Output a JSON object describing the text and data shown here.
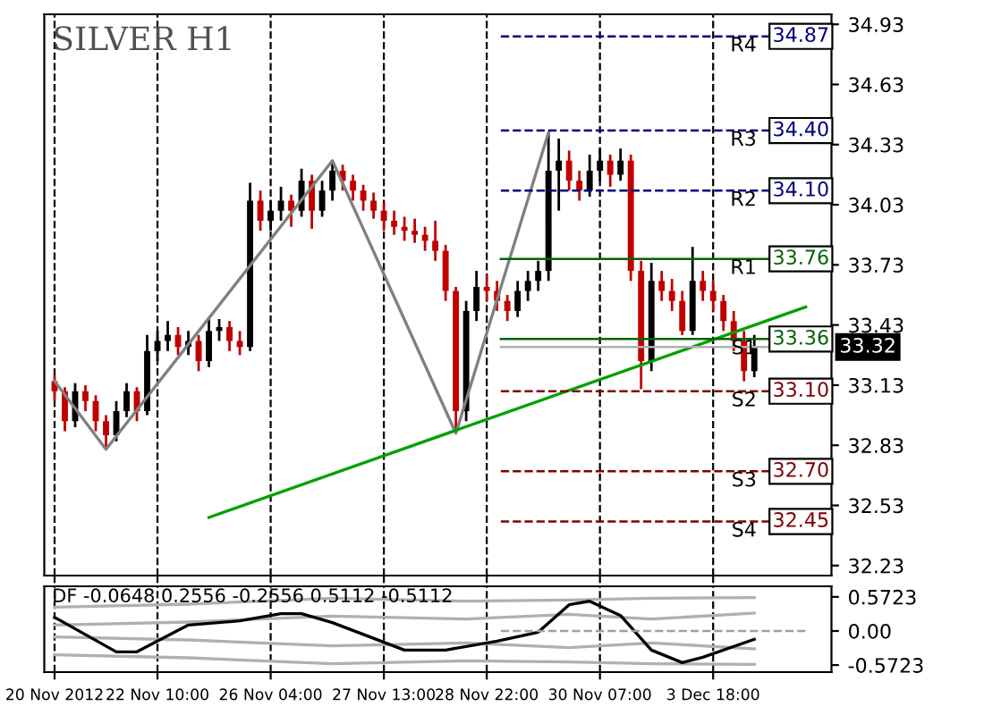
{
  "chart_data": [
    {
      "type": "candlestick",
      "title": "SILVER H1",
      "categories": [
        null,
        null,
        null,
        null,
        null,
        null,
        null,
        null,
        null,
        null,
        null,
        null,
        null,
        null,
        null,
        null,
        null,
        null,
        null,
        null,
        null,
        null,
        null,
        null,
        null,
        null,
        null,
        null,
        null,
        null,
        null,
        null,
        null,
        null,
        null,
        null,
        null,
        null,
        null,
        null,
        null,
        null,
        null,
        null,
        null,
        null,
        null,
        null,
        null,
        null,
        null,
        null,
        null,
        null,
        null,
        null,
        null,
        null,
        null,
        null,
        null,
        null,
        null,
        null,
        null,
        null,
        null,
        null,
        null,
        null,
        null,
        null,
        null,
        null,
        null,
        null
      ],
      "annotations": [
        {
          "text": "34.87",
          "y": 34.87
        },
        {
          "text": "34.40",
          "y": 34.4
        },
        {
          "text": "34.10",
          "y": 34.1
        },
        {
          "text": "33.76",
          "y": 33.76
        },
        {
          "text": "33.36",
          "y": 33.36
        },
        {
          "text": "33.10",
          "y": 33.1
        },
        {
          "text": "32.70",
          "y": 32.7
        },
        {
          "text": "32.45",
          "y": 32.45
        },
        {
          "text": "33.32",
          "y": 33.32
        }
      ],
      "ohlc": [
        [
          33.15,
          33.18,
          33.05,
          33.1
        ],
        [
          33.1,
          33.12,
          32.9,
          32.95
        ],
        [
          32.95,
          33.14,
          32.92,
          33.1
        ],
        [
          33.1,
          33.13,
          33.0,
          33.05
        ],
        [
          33.05,
          33.08,
          32.9,
          32.95
        ],
        [
          32.95,
          32.98,
          32.81,
          32.88
        ],
        [
          32.88,
          33.05,
          32.85,
          33.0
        ],
        [
          33.0,
          33.14,
          32.97,
          33.1
        ],
        [
          33.1,
          33.12,
          32.95,
          33.0
        ],
        [
          33.0,
          33.38,
          32.98,
          33.3
        ],
        [
          33.3,
          33.4,
          33.25,
          33.35
        ],
        [
          33.35,
          33.45,
          33.3,
          33.38
        ],
        [
          33.38,
          33.42,
          33.28,
          33.32
        ],
        [
          33.32,
          33.4,
          33.28,
          33.35
        ],
        [
          33.35,
          33.38,
          33.2,
          33.25
        ],
        [
          33.25,
          33.47,
          33.22,
          33.4
        ],
        [
          33.4,
          33.46,
          33.35,
          33.42
        ],
        [
          33.42,
          33.45,
          33.3,
          33.35
        ],
        [
          33.35,
          33.4,
          33.28,
          33.32
        ],
        [
          33.32,
          34.14,
          33.3,
          34.05
        ],
        [
          34.05,
          34.1,
          33.9,
          33.95
        ],
        [
          33.95,
          34.05,
          33.9,
          34.0
        ],
        [
          34.0,
          34.12,
          33.95,
          34.05
        ],
        [
          34.05,
          34.08,
          33.92,
          34.0
        ],
        [
          34.0,
          34.21,
          33.97,
          34.15
        ],
        [
          34.15,
          34.18,
          33.91,
          34.0
        ],
        [
          34.0,
          34.15,
          33.97,
          34.1
        ],
        [
          34.1,
          34.25,
          34.05,
          34.2
        ],
        [
          34.2,
          34.23,
          34.1,
          34.15
        ],
        [
          34.15,
          34.18,
          34.05,
          34.1
        ],
        [
          34.1,
          34.13,
          34.0,
          34.05
        ],
        [
          34.05,
          34.09,
          33.96,
          34.0
        ],
        [
          34.0,
          34.04,
          33.9,
          33.95
        ],
        [
          33.95,
          34.0,
          33.88,
          33.92
        ],
        [
          33.92,
          33.97,
          33.85,
          33.9
        ],
        [
          33.9,
          33.96,
          33.84,
          33.88
        ],
        [
          33.88,
          33.92,
          33.8,
          33.85
        ],
        [
          33.85,
          33.95,
          33.75,
          33.8
        ],
        [
          33.8,
          33.83,
          33.55,
          33.6
        ],
        [
          33.6,
          33.62,
          32.89,
          33.0
        ],
        [
          33.0,
          33.55,
          32.95,
          33.5
        ],
        [
          33.5,
          33.7,
          33.45,
          33.62
        ],
        [
          33.62,
          33.68,
          33.55,
          33.6
        ],
        [
          33.6,
          33.65,
          33.5,
          33.55
        ],
        [
          33.55,
          33.58,
          33.45,
          33.5
        ],
        [
          33.5,
          33.65,
          33.47,
          33.6
        ],
        [
          33.6,
          33.7,
          33.55,
          33.65
        ],
        [
          33.65,
          33.75,
          33.6,
          33.7
        ],
        [
          33.7,
          34.39,
          33.65,
          34.2
        ],
        [
          34.2,
          34.36,
          34.0,
          34.25
        ],
        [
          34.25,
          34.3,
          34.1,
          34.15
        ],
        [
          34.15,
          34.2,
          34.05,
          34.1
        ],
        [
          34.1,
          34.28,
          34.07,
          34.2
        ],
        [
          34.2,
          34.31,
          34.15,
          34.25
        ],
        [
          34.25,
          34.28,
          34.12,
          34.18
        ],
        [
          34.18,
          34.31,
          34.15,
          34.25
        ],
        [
          34.25,
          34.28,
          33.65,
          33.7
        ],
        [
          33.7,
          33.75,
          33.11,
          33.25
        ],
        [
          33.25,
          33.74,
          33.2,
          33.65
        ],
        [
          33.65,
          33.7,
          33.55,
          33.6
        ],
        [
          33.6,
          33.66,
          33.5,
          33.55
        ],
        [
          33.55,
          33.6,
          33.38,
          33.4
        ],
        [
          33.4,
          33.82,
          33.38,
          33.65
        ],
        [
          33.65,
          33.7,
          33.55,
          33.6
        ],
        [
          33.6,
          33.65,
          33.5,
          33.55
        ],
        [
          33.55,
          33.58,
          33.4,
          33.45
        ],
        [
          33.45,
          33.5,
          33.3,
          33.35
        ],
        [
          33.35,
          33.4,
          33.15,
          33.2
        ],
        [
          33.2,
          33.38,
          33.17,
          33.32
        ],
        null,
        null,
        null,
        null,
        null,
        null,
        null
      ],
      "colors": [
        "#c00000",
        "#c00000",
        "#000000",
        "#c00000",
        "#c00000",
        "#c00000",
        "#000000",
        "#000000",
        "#c00000",
        "#000000",
        "#000000",
        "#000000",
        "#c00000",
        "#000000",
        "#c00000",
        "#000000",
        "#000000",
        "#c00000",
        "#c00000",
        "#000000",
        "#c00000",
        "#000000",
        "#000000",
        "#c00000",
        "#000000",
        "#c00000",
        "#000000",
        "#000000",
        "#c00000",
        "#c00000",
        "#c00000",
        "#c00000",
        "#c00000",
        "#c00000",
        "#c00000",
        "#c00000",
        "#c00000",
        "#c00000",
        "#c00000",
        "#c00000",
        "#000000",
        "#000000",
        "#c00000",
        "#c00000",
        "#c00000",
        "#000000",
        "#000000",
        "#000000",
        "#000000",
        "#000000",
        "#c00000",
        "#c00000",
        "#000000",
        "#000000",
        "#c00000",
        "#000000",
        "#c00000",
        "#c00000",
        "#000000",
        "#c00000",
        "#c00000",
        "#c00000",
        "#000000",
        "#c00000",
        "#c00000",
        "#c00000",
        "#c00000",
        "#c00000",
        "#000000",
        null,
        null,
        null,
        null,
        null,
        null,
        null
      ],
      "series": [
        {
          "type": "line",
          "color": "#808080",
          "values": [
            33.15,
            null,
            null,
            null,
            null,
            32.81,
            null,
            null,
            null,
            null,
            null,
            null,
            null,
            null,
            null,
            null,
            null,
            null,
            null,
            null,
            null,
            null,
            null,
            null,
            null,
            null,
            null,
            34.25,
            null,
            null,
            null,
            null,
            null,
            null,
            null,
            null,
            null,
            null,
            null,
            32.89,
            null,
            null,
            null,
            null,
            null,
            null,
            null,
            null,
            34.39,
            null,
            null,
            null,
            null,
            null,
            null,
            null,
            null,
            null,
            null,
            null,
            null,
            null,
            null,
            null,
            null,
            null,
            null,
            null,
            null,
            null,
            null,
            null,
            null,
            null,
            null,
            null
          ]
        },
        {
          "type": "line",
          "color": "#00a000",
          "values": [
            null,
            null,
            null,
            null,
            null,
            null,
            null,
            null,
            null,
            null,
            null,
            null,
            null,
            null,
            null,
            32.47,
            null,
            null,
            null,
            null,
            null,
            null,
            null,
            null,
            null,
            null,
            null,
            null,
            null,
            null,
            null,
            null,
            null,
            null,
            null,
            null,
            null,
            null,
            null,
            null,
            null,
            null,
            null,
            null,
            null,
            null,
            null,
            null,
            null,
            null,
            null,
            null,
            null,
            null,
            null,
            null,
            null,
            null,
            null,
            null,
            null,
            null,
            null,
            null,
            null,
            null,
            null,
            null,
            null,
            null,
            null,
            null,
            null,
            33.52,
            null,
            null
          ]
        }
      ],
      "ylim": [
        32.18,
        34.98
      ],
      "yticks": [
        34.93,
        34.63,
        34.33,
        34.03,
        33.73,
        33.43,
        33.13,
        32.83,
        32.53,
        32.23
      ],
      "ref_lines": [
        {
          "axis": "y",
          "value": 34.87,
          "label": "R4",
          "color": "#000080",
          "line_style": "dashed"
        },
        {
          "axis": "y",
          "value": 34.4,
          "label": "R3",
          "color": "#000080",
          "line_style": "dashed"
        },
        {
          "axis": "y",
          "value": 34.1,
          "label": "R2",
          "color": "#000080",
          "line_style": "dashed"
        },
        {
          "axis": "y",
          "value": 33.76,
          "label": "R1",
          "color": "#006400",
          "line_style": "solid"
        },
        {
          "axis": "y",
          "value": 33.36,
          "label": "S1",
          "color": "#006400",
          "line_style": "solid"
        },
        {
          "axis": "y",
          "value": 33.1,
          "label": "S2",
          "color": "#800000",
          "line_style": "dashed"
        },
        {
          "axis": "y",
          "value": 32.7,
          "label": "S3",
          "color": "#800000",
          "line_style": "dashed"
        },
        {
          "axis": "y",
          "value": 32.45,
          "label": "S4",
          "color": "#800000",
          "line_style": "dashed"
        },
        {
          "axis": "y",
          "value": 33.32,
          "label": null,
          "color": "#b0b0b0",
          "line_style": "solid"
        }
      ],
      "grid": "x",
      "legend": false,
      "tick_labels": "y"
    },
    {
      "type": "line",
      "title": "DF -0.0648 0.2556 -0.2556 0.5112 -0.5112",
      "categories": [
        "20 Nov 2012",
        null,
        null,
        null,
        null,
        null,
        null,
        null,
        null,
        null,
        "22 Nov 10:00",
        null,
        null,
        null,
        null,
        null,
        null,
        null,
        null,
        null,
        null,
        "26 Nov 04:00",
        null,
        null,
        null,
        null,
        null,
        null,
        null,
        null,
        null,
        null,
        "27 Nov 13:00",
        null,
        null,
        null,
        null,
        null,
        null,
        null,
        null,
        null,
        "28 Nov 22:00",
        null,
        null,
        null,
        null,
        null,
        null,
        null,
        null,
        null,
        null,
        "30 Nov 07:00",
        null,
        null,
        null,
        null,
        null,
        null,
        null,
        null,
        null,
        null,
        "3 Dec 18:00",
        null,
        null,
        null,
        null,
        null,
        null,
        null,
        null,
        null,
        null,
        null
      ],
      "series": [
        {
          "color": "#b0b0b0",
          "values": [
            0.4,
            null,
            null,
            null,
            null,
            null,
            null,
            null,
            null,
            null,
            null,
            null,
            null,
            0.45,
            null,
            null,
            null,
            null,
            null,
            null,
            null,
            null,
            null,
            null,
            null,
            null,
            null,
            0.55,
            null,
            null,
            null,
            null,
            null,
            null,
            null,
            null,
            null,
            null,
            null,
            null,
            0.5,
            null,
            null,
            null,
            null,
            null,
            null,
            null,
            null,
            null,
            0.52,
            null,
            null,
            null,
            null,
            null,
            null,
            null,
            0.55,
            null,
            null,
            null,
            null,
            null,
            null,
            null,
            null,
            null,
            0.56,
            null,
            null,
            null,
            null,
            null,
            null,
            null
          ]
        },
        {
          "color": "#b0b0b0",
          "values": [
            0.1,
            null,
            null,
            null,
            null,
            null,
            null,
            null,
            null,
            null,
            null,
            null,
            null,
            0.15,
            null,
            null,
            null,
            null,
            null,
            null,
            null,
            null,
            null,
            null,
            null,
            null,
            null,
            0.25,
            null,
            null,
            null,
            null,
            null,
            null,
            null,
            null,
            null,
            null,
            null,
            null,
            0.2,
            null,
            null,
            null,
            null,
            null,
            null,
            null,
            null,
            null,
            0.28,
            null,
            null,
            null,
            null,
            null,
            null,
            null,
            0.2,
            null,
            null,
            null,
            null,
            null,
            null,
            null,
            null,
            null,
            0.3,
            null,
            null,
            null,
            null,
            null,
            null,
            null
          ]
        },
        {
          "color": "#b0b0b0",
          "values": [
            -0.1,
            null,
            null,
            null,
            null,
            null,
            null,
            null,
            null,
            null,
            null,
            null,
            null,
            -0.15,
            null,
            null,
            null,
            null,
            null,
            null,
            null,
            null,
            null,
            null,
            null,
            null,
            null,
            -0.25,
            null,
            null,
            null,
            null,
            null,
            null,
            null,
            null,
            null,
            null,
            null,
            null,
            -0.2,
            null,
            null,
            null,
            null,
            null,
            null,
            null,
            null,
            null,
            -0.28,
            null,
            null,
            null,
            null,
            null,
            null,
            null,
            -0.2,
            null,
            null,
            null,
            null,
            null,
            null,
            null,
            null,
            null,
            -0.3,
            null,
            null,
            null,
            null,
            null,
            null,
            null
          ]
        },
        {
          "color": "#b0b0b0",
          "values": [
            -0.4,
            null,
            null,
            null,
            null,
            null,
            null,
            null,
            null,
            null,
            null,
            null,
            null,
            -0.45,
            null,
            null,
            null,
            null,
            null,
            null,
            null,
            null,
            null,
            null,
            null,
            null,
            null,
            -0.55,
            null,
            null,
            null,
            null,
            null,
            null,
            null,
            null,
            null,
            null,
            null,
            null,
            -0.5,
            null,
            null,
            null,
            null,
            null,
            null,
            null,
            null,
            null,
            -0.52,
            null,
            null,
            null,
            null,
            null,
            null,
            null,
            -0.55,
            null,
            null,
            null,
            null,
            null,
            null,
            null,
            null,
            null,
            -0.56,
            null,
            null,
            null,
            null,
            null,
            null,
            null
          ]
        },
        {
          "color": "#000000",
          "values": [
            0.23,
            null,
            null,
            null,
            null,
            null,
            -0.35,
            null,
            -0.35,
            null,
            null,
            null,
            null,
            0.1,
            null,
            null,
            null,
            null,
            0.17,
            null,
            null,
            null,
            0.29,
            null,
            0.29,
            null,
            null,
            0.14,
            null,
            null,
            null,
            null,
            null,
            null,
            -0.32,
            null,
            null,
            null,
            -0.32,
            null,
            null,
            null,
            null,
            -0.17,
            null,
            null,
            null,
            -0.02,
            null,
            null,
            0.44,
            null,
            0.5,
            null,
            null,
            0.26,
            null,
            null,
            -0.32,
            null,
            null,
            -0.53,
            null,
            -0.44,
            null,
            null,
            null,
            null,
            -0.14,
            null,
            null,
            null,
            null,
            null,
            null,
            null
          ]
        }
      ],
      "ylim": [
        -0.69,
        0.75
      ],
      "yticks": [
        0.5723,
        {
          "value": 0,
          "label": "0.00"
        },
        -0.5723
      ],
      "ref_lines": [
        {
          "axis": "y",
          "value": 0,
          "label": null,
          "color": "#a0a0a0",
          "line_style": "dashed"
        }
      ],
      "grid": "x",
      "legend": false
    }
  ]
}
